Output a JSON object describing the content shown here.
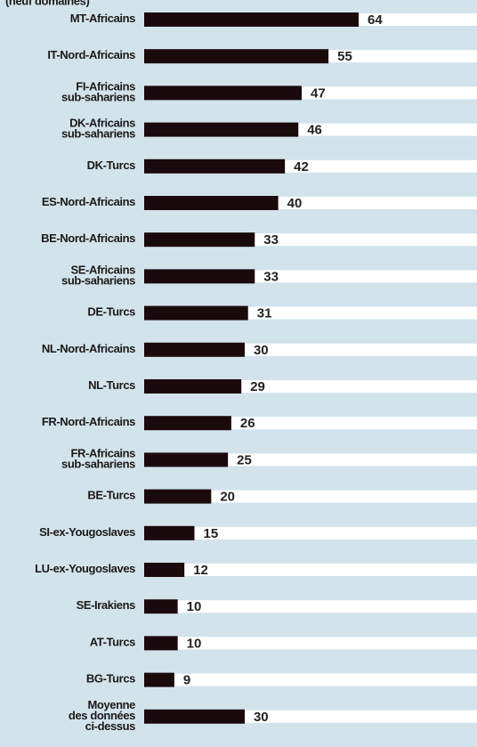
{
  "chart_data": {
    "type": "bar",
    "orientation": "horizontal",
    "subtitle": "(neuf domaines)",
    "categories": [
      [
        "MT-Africains"
      ],
      [
        "IT-Nord-Africains"
      ],
      [
        "FI-Africains",
        "sub-sahariens"
      ],
      [
        "DK-Africains",
        "sub-sahariens"
      ],
      [
        "DK-Turcs"
      ],
      [
        "ES-Nord-Africains"
      ],
      [
        "BE-Nord-Africains"
      ],
      [
        "SE-Africains",
        "sub-sahariens"
      ],
      [
        "DE-Turcs"
      ],
      [
        "NL-Nord-Africains"
      ],
      [
        "NL-Turcs"
      ],
      [
        "FR-Nord-Africains"
      ],
      [
        "FR-Africains",
        "sub-sahariens"
      ],
      [
        "BE-Turcs"
      ],
      [
        "SI-ex-Yougoslaves"
      ],
      [
        "LU-ex-Yougoslaves"
      ],
      [
        "SE-Irakiens"
      ],
      [
        "AT-Turcs"
      ],
      [
        "BG-Turcs"
      ],
      [
        "Moyenne",
        "des données",
        "ci-dessus"
      ]
    ],
    "values": [
      64,
      55,
      47,
      46,
      42,
      40,
      33,
      33,
      31,
      30,
      29,
      26,
      25,
      20,
      15,
      12,
      10,
      10,
      9,
      30
    ],
    "color": "#1a0a0c",
    "xlim": [
      0,
      100
    ]
  }
}
